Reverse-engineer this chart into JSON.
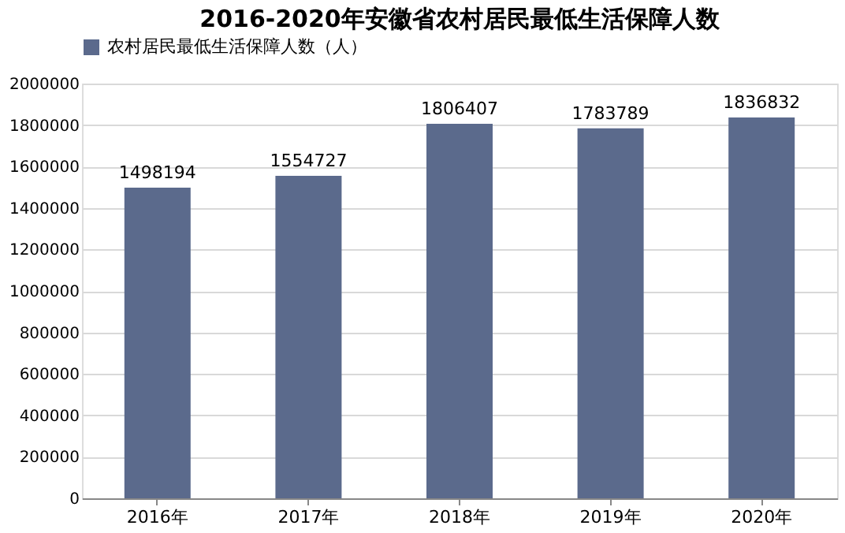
{
  "chart_data": {
    "type": "bar",
    "title": "2016-2020年安徽省农村居民最低生活保障人数",
    "categories": [
      "2016年",
      "2017年",
      "2018年",
      "2019年",
      "2020年"
    ],
    "series": [
      {
        "name": "农村居民最低生活保障人数（人）",
        "color": "#5b6a8c",
        "values": [
          1498194,
          1554727,
          1806407,
          1783789,
          1836832
        ]
      }
    ],
    "ylim": [
      0,
      2000000
    ],
    "yticks": [
      0,
      200000,
      400000,
      600000,
      800000,
      1000000,
      1200000,
      1400000,
      1600000,
      1800000,
      2000000
    ],
    "grid": "y",
    "legend": "top",
    "data_labels": true
  }
}
